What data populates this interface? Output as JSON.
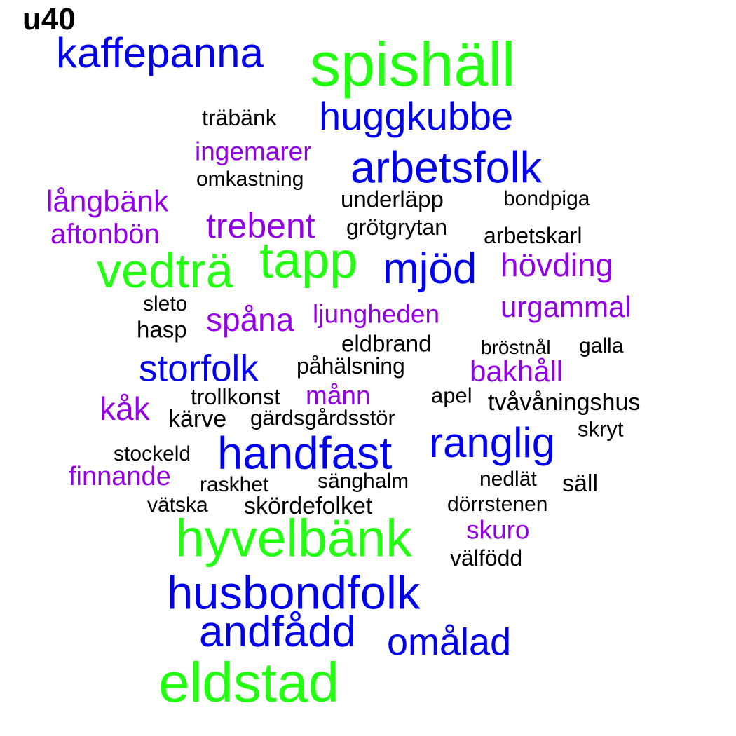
{
  "title": "u40",
  "colors": {
    "tier1": "#22ff11",
    "tier2": "#0000ee",
    "tier3": "#9400e6",
    "tier4": "#000000"
  },
  "words": [
    {
      "text": "spishäll",
      "tier": 1
    },
    {
      "text": "kaffepanna",
      "tier": 2
    },
    {
      "text": "huggkubbe",
      "tier": 2
    },
    {
      "text": "träbänk",
      "tier": 4
    },
    {
      "text": "ingemarer",
      "tier": 3
    },
    {
      "text": "arbetsfolk",
      "tier": 2
    },
    {
      "text": "omkastning",
      "tier": 4
    },
    {
      "text": "långbänk",
      "tier": 3
    },
    {
      "text": "underläpp",
      "tier": 4
    },
    {
      "text": "bondpiga",
      "tier": 4
    },
    {
      "text": "trebent",
      "tier": 3
    },
    {
      "text": "aftonbön",
      "tier": 3
    },
    {
      "text": "grötgrytan",
      "tier": 4
    },
    {
      "text": "arbetskarl",
      "tier": 4
    },
    {
      "text": "vedträ",
      "tier": 1
    },
    {
      "text": "tapp",
      "tier": 1
    },
    {
      "text": "mjöd",
      "tier": 2
    },
    {
      "text": "hövding",
      "tier": 3
    },
    {
      "text": "sleto",
      "tier": 4
    },
    {
      "text": "urgammal",
      "tier": 3
    },
    {
      "text": "spåna",
      "tier": 3
    },
    {
      "text": "ljungheden",
      "tier": 3
    },
    {
      "text": "hasp",
      "tier": 4
    },
    {
      "text": "eldbrand",
      "tier": 4
    },
    {
      "text": "bröstnål",
      "tier": 4
    },
    {
      "text": "galla",
      "tier": 4
    },
    {
      "text": "storfolk",
      "tier": 2
    },
    {
      "text": "påhälsning",
      "tier": 4
    },
    {
      "text": "bakhåll",
      "tier": 3
    },
    {
      "text": "trollkonst",
      "tier": 4
    },
    {
      "text": "månn",
      "tier": 3
    },
    {
      "text": "apel",
      "tier": 4
    },
    {
      "text": "tvåvåningshus",
      "tier": 4
    },
    {
      "text": "kåk",
      "tier": 3
    },
    {
      "text": "kärve",
      "tier": 4
    },
    {
      "text": "gärdsgårdsstör",
      "tier": 4
    },
    {
      "text": "skryt",
      "tier": 4
    },
    {
      "text": "stockeld",
      "tier": 4
    },
    {
      "text": "handfast",
      "tier": 2
    },
    {
      "text": "ranglig",
      "tier": 2
    },
    {
      "text": "finnande",
      "tier": 3
    },
    {
      "text": "raskhet",
      "tier": 4
    },
    {
      "text": "sänghalm",
      "tier": 4
    },
    {
      "text": "nedlät",
      "tier": 4
    },
    {
      "text": "säll",
      "tier": 4
    },
    {
      "text": "vätska",
      "tier": 4
    },
    {
      "text": "skördefolket",
      "tier": 4
    },
    {
      "text": "dörrstenen",
      "tier": 4
    },
    {
      "text": "hyvelbänk",
      "tier": 1
    },
    {
      "text": "skuro",
      "tier": 3
    },
    {
      "text": "välfödd",
      "tier": 4
    },
    {
      "text": "husbondfolk",
      "tier": 2
    },
    {
      "text": "andfådd",
      "tier": 2
    },
    {
      "text": "omålad",
      "tier": 2
    },
    {
      "text": "eldstad",
      "tier": 1
    }
  ]
}
